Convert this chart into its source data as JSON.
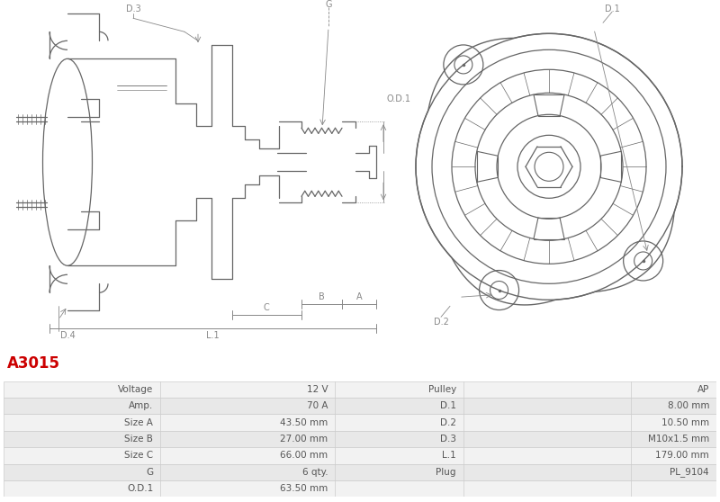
{
  "title": "A3015",
  "title_color": "#cc0000",
  "table_rows": [
    [
      "Voltage",
      "12 V",
      "Pulley",
      "AP"
    ],
    [
      "Amp.",
      "70 A",
      "D.1",
      "8.00 mm"
    ],
    [
      "Size A",
      "43.50 mm",
      "D.2",
      "10.50 mm"
    ],
    [
      "Size B",
      "27.00 mm",
      "D.3",
      "M10x1.5 mm"
    ],
    [
      "Size C",
      "66.00 mm",
      "L.1",
      "179.00 mm"
    ],
    [
      "G",
      "6 qty.",
      "Plug",
      "PL_9104"
    ],
    [
      "O.D.1",
      "63.50 mm",
      "",
      ""
    ]
  ],
  "table_bg_even": "#f2f2f2",
  "table_bg_odd": "#e8e8e8",
  "table_border": "#cccccc",
  "line_color": "#666666",
  "dim_color": "#888888",
  "text_color": "#555555"
}
